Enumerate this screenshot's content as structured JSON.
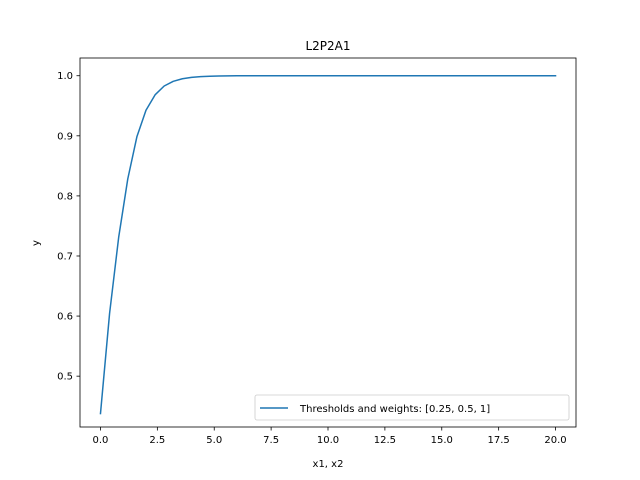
{
  "chart_data": {
    "type": "line",
    "title": "L2P2A1",
    "xlabel": "x1, x2",
    "ylabel": "y",
    "xlim": [
      -0.9,
      20.9
    ],
    "ylim": [
      0.4154,
      1.0295
    ],
    "xticks": [
      0.0,
      2.5,
      5.0,
      7.5,
      10.0,
      12.5,
      15.0,
      17.5,
      20.0
    ],
    "xtick_labels": [
      "0.0",
      "2.5",
      "5.0",
      "7.5",
      "10.0",
      "12.5",
      "15.0",
      "17.5",
      "20.0"
    ],
    "yticks": [
      0.5,
      0.6,
      0.7,
      0.8,
      0.9,
      1.0
    ],
    "ytick_labels": [
      "0.5",
      "0.6",
      "0.7",
      "0.8",
      "0.9",
      "1.0"
    ],
    "grid": false,
    "legend_position": "lower right",
    "series": [
      {
        "name": "Thresholds and weights: [0.25, 0.5, 1]",
        "color": "#1f77b4",
        "x": [
          0.0,
          0.4,
          0.8,
          1.2,
          1.6,
          2.0,
          2.4,
          2.8,
          3.2,
          3.6,
          4.0,
          4.4,
          4.8,
          5.2,
          5.6,
          6.0,
          7.0,
          8.0,
          10.0,
          12.0,
          14.0,
          16.0,
          18.0,
          20.0
        ],
        "y": [
          0.4378,
          0.6044,
          0.7311,
          0.8283,
          0.8984,
          0.9426,
          0.9682,
          0.9829,
          0.9907,
          0.995,
          0.9973,
          0.9985,
          0.9992,
          0.9996,
          0.9998,
          0.9999,
          1.0,
          1.0,
          1.0,
          1.0,
          1.0,
          1.0,
          1.0,
          1.0
        ]
      }
    ]
  }
}
